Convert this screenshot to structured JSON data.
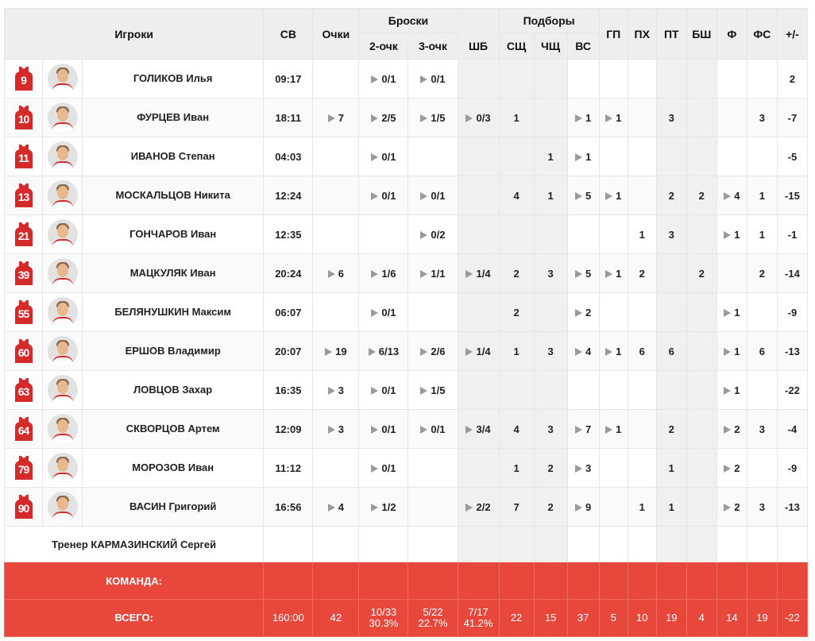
{
  "headers": {
    "players": "Игроки",
    "time": "СВ",
    "points": "Очки",
    "shots": "Броски",
    "two": "2-очк",
    "three": "3-очк",
    "ft": "ШБ",
    "rebounds": "Подборы",
    "reb_off": "СЩ",
    "reb_def": "ЧЩ",
    "reb_tot": "ВС",
    "assists": "ГП",
    "steals": "ПХ",
    "turnovers": "ПТ",
    "blocks": "БШ",
    "fouls": "Ф",
    "fouls_drawn": "ФС",
    "plusminus": "+/-"
  },
  "players": [
    {
      "num": "9",
      "name": "ГОЛИКОВ Илья",
      "time": "09:17",
      "pts": "",
      "two": "0/1",
      "three": "0/1",
      "ft": "",
      "oreb": "",
      "dreb": "",
      "treb": "",
      "ast": "",
      "stl": "",
      "to": "",
      "blk": "",
      "pf": "",
      "fd": "",
      "pm": "2"
    },
    {
      "num": "10",
      "name": "ФУРЦЕВ Иван",
      "time": "18:11",
      "pts": "7",
      "two": "2/5",
      "three": "1/5",
      "ft": "0/3",
      "oreb": "1",
      "dreb": "",
      "treb": "1",
      "ast": "1",
      "stl": "",
      "to": "3",
      "blk": "",
      "pf": "",
      "fd": "3",
      "pm": "-7"
    },
    {
      "num": "11",
      "name": "ИВАНОВ Степан",
      "time": "04:03",
      "pts": "",
      "two": "0/1",
      "three": "",
      "ft": "",
      "oreb": "",
      "dreb": "1",
      "treb": "1",
      "ast": "",
      "stl": "",
      "to": "",
      "blk": "",
      "pf": "",
      "fd": "",
      "pm": "-5"
    },
    {
      "num": "13",
      "name": "МОСКАЛЬЦОВ Никита",
      "time": "12:24",
      "pts": "",
      "two": "0/1",
      "three": "0/1",
      "ft": "",
      "oreb": "4",
      "dreb": "1",
      "treb": "5",
      "ast": "1",
      "stl": "",
      "to": "2",
      "blk": "2",
      "pf": "4",
      "fd": "1",
      "pm": "-15"
    },
    {
      "num": "21",
      "name": "ГОНЧАРОВ Иван",
      "time": "12:35",
      "pts": "",
      "two": "",
      "three": "0/2",
      "ft": "",
      "oreb": "",
      "dreb": "",
      "treb": "",
      "ast": "",
      "stl": "1",
      "to": "3",
      "blk": "",
      "pf": "1",
      "fd": "1",
      "pm": "-1"
    },
    {
      "num": "39",
      "name": "МАЦКУЛЯК Иван",
      "time": "20:24",
      "pts": "6",
      "two": "1/6",
      "three": "1/1",
      "ft": "1/4",
      "oreb": "2",
      "dreb": "3",
      "treb": "5",
      "ast": "1",
      "stl": "2",
      "to": "",
      "blk": "2",
      "pf": "",
      "fd": "2",
      "pm": "-14"
    },
    {
      "num": "55",
      "name": "БЕЛЯНУШКИН Максим",
      "time": "06:07",
      "pts": "",
      "two": "0/1",
      "three": "",
      "ft": "",
      "oreb": "2",
      "dreb": "",
      "treb": "2",
      "ast": "",
      "stl": "",
      "to": "",
      "blk": "",
      "pf": "1",
      "fd": "",
      "pm": "-9"
    },
    {
      "num": "60",
      "name": "ЕРШОВ Владимир",
      "time": "20:07",
      "pts": "19",
      "two": "6/13",
      "three": "2/6",
      "ft": "1/4",
      "oreb": "1",
      "dreb": "3",
      "treb": "4",
      "ast": "1",
      "stl": "6",
      "to": "6",
      "blk": "",
      "pf": "1",
      "fd": "6",
      "pm": "-13"
    },
    {
      "num": "63",
      "name": "ЛОВЦОВ Захар",
      "time": "16:35",
      "pts": "3",
      "two": "0/1",
      "three": "1/5",
      "ft": "",
      "oreb": "",
      "dreb": "",
      "treb": "",
      "ast": "",
      "stl": "",
      "to": "",
      "blk": "",
      "pf": "1",
      "fd": "",
      "pm": "-22"
    },
    {
      "num": "64",
      "name": "СКВОРЦОВ Артем",
      "time": "12:09",
      "pts": "3",
      "two": "0/1",
      "three": "0/1",
      "ft": "3/4",
      "oreb": "4",
      "dreb": "3",
      "treb": "7",
      "ast": "1",
      "stl": "",
      "to": "2",
      "blk": "",
      "pf": "2",
      "fd": "3",
      "pm": "-4"
    },
    {
      "num": "79",
      "name": "МОРОЗОВ Иван",
      "time": "11:12",
      "pts": "",
      "two": "0/1",
      "three": "",
      "ft": "",
      "oreb": "1",
      "dreb": "2",
      "treb": "3",
      "ast": "",
      "stl": "",
      "to": "1",
      "blk": "",
      "pf": "2",
      "fd": "",
      "pm": "-9"
    },
    {
      "num": "90",
      "name": "ВАСИН Григорий",
      "time": "16:56",
      "pts": "4",
      "two": "1/2",
      "three": "",
      "ft": "2/2",
      "oreb": "7",
      "dreb": "2",
      "treb": "9",
      "ast": "",
      "stl": "1",
      "to": "1",
      "blk": "",
      "pf": "2",
      "fd": "3",
      "pm": "-13"
    }
  ],
  "coach": "Тренер КАРМАЗИНСКИЙ Сергей",
  "team_label": "КОМАНДА:",
  "total": {
    "label": "ВСЕГО:",
    "time": "160:00",
    "pts": "42",
    "two": "10/33",
    "two_pct": "30.3%",
    "three": "5/22",
    "three_pct": "22.7%",
    "ft": "7/17",
    "ft_pct": "41.2%",
    "oreb": "22",
    "dreb": "15",
    "treb": "37",
    "ast": "5",
    "stl": "10",
    "to": "19",
    "blk": "4",
    "pf": "14",
    "fd": "19",
    "pm": "-22"
  },
  "arrow_columns": [
    "pts",
    "two",
    "three",
    "ft",
    "treb",
    "ast",
    "pf"
  ],
  "shaded_columns": [
    "ft",
    "oreb",
    "dreb",
    "to",
    "blk"
  ],
  "colors": {
    "accent": "#e8473c",
    "jersey": "#d42a2a",
    "arrow": "#9a9a9a"
  }
}
